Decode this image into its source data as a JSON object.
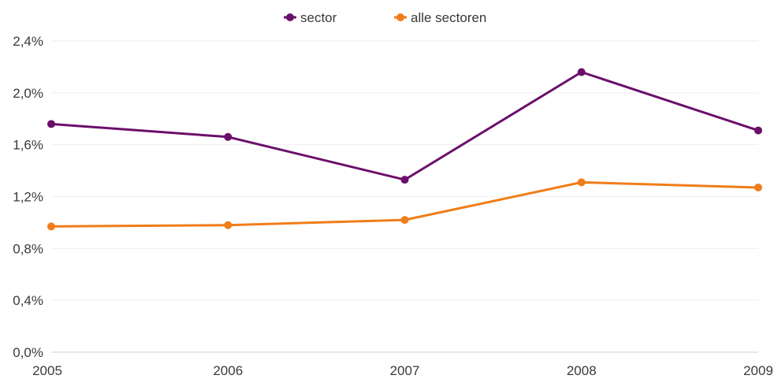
{
  "chart_data": {
    "type": "line",
    "x": [
      "2005",
      "2006",
      "2007",
      "2008",
      "2009"
    ],
    "ylim": [
      0,
      2.4
    ],
    "y_ticks": [
      0,
      0.4,
      0.8,
      1.2,
      1.6,
      2.0,
      2.4
    ],
    "y_tick_labels": [
      "0,0%",
      "0,4%",
      "0,8%",
      "1,2%",
      "1,6%",
      "2,0%",
      "2,4%"
    ],
    "grid": true,
    "legend_position": "top-center",
    "series": [
      {
        "name": "sector",
        "color": "#6b0f6b",
        "values": [
          1.76,
          1.66,
          1.33,
          2.16,
          1.71
        ]
      },
      {
        "name": "alle sectoren",
        "color": "#f07d1a",
        "values": [
          0.97,
          0.98,
          1.02,
          1.31,
          1.27
        ]
      }
    ]
  }
}
